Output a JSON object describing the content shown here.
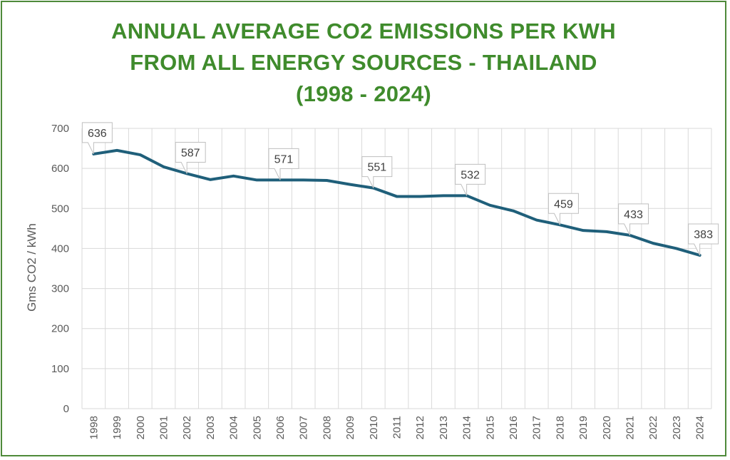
{
  "chart_data": {
    "type": "line",
    "title_lines": [
      "ANNUAL AVERAGE CO2 EMISSIONS PER KWH",
      "FROM ALL ENERGY SOURCES - THAILAND",
      "(1998 - 2024)"
    ],
    "ylabel": "Gms CO2 / kWh",
    "xlabel": "",
    "ylim": [
      0,
      700
    ],
    "yticks": [
      0,
      100,
      200,
      300,
      400,
      500,
      600,
      700
    ],
    "grid": true,
    "legend": "none",
    "categories": [
      "1998",
      "1999",
      "2000",
      "2001",
      "2002",
      "2003",
      "2004",
      "2005",
      "2006",
      "2007",
      "2008",
      "2009",
      "2010",
      "2011",
      "2012",
      "2013",
      "2014",
      "2015",
      "2016",
      "2017",
      "2018",
      "2019",
      "2020",
      "2021",
      "2022",
      "2023",
      "2024"
    ],
    "series": [
      {
        "values": [
          636,
          645,
          634,
          604,
          587,
          572,
          581,
          571,
          571,
          571,
          570,
          560,
          551,
          530,
          530,
          532,
          532,
          508,
          494,
          471,
          459,
          445,
          442,
          433,
          413,
          400,
          383
        ],
        "color": "#1f5f7a"
      }
    ],
    "data_labels": [
      {
        "year": "1998",
        "value": 636,
        "text": "636"
      },
      {
        "year": "2002",
        "value": 587,
        "text": "587"
      },
      {
        "year": "2006",
        "value": 571,
        "text": "571"
      },
      {
        "year": "2010",
        "value": 551,
        "text": "551"
      },
      {
        "year": "2014",
        "value": 532,
        "text": "532"
      },
      {
        "year": "2018",
        "value": 459,
        "text": "459"
      },
      {
        "year": "2021",
        "value": 433,
        "text": "433"
      },
      {
        "year": "2024",
        "value": 383,
        "text": "383"
      }
    ],
    "colors": {
      "title": "#3f8b2c",
      "frame": "#4e8a3a",
      "line": "#1f5f7a",
      "grid": "#d9d9d9",
      "text": "#595959"
    }
  }
}
